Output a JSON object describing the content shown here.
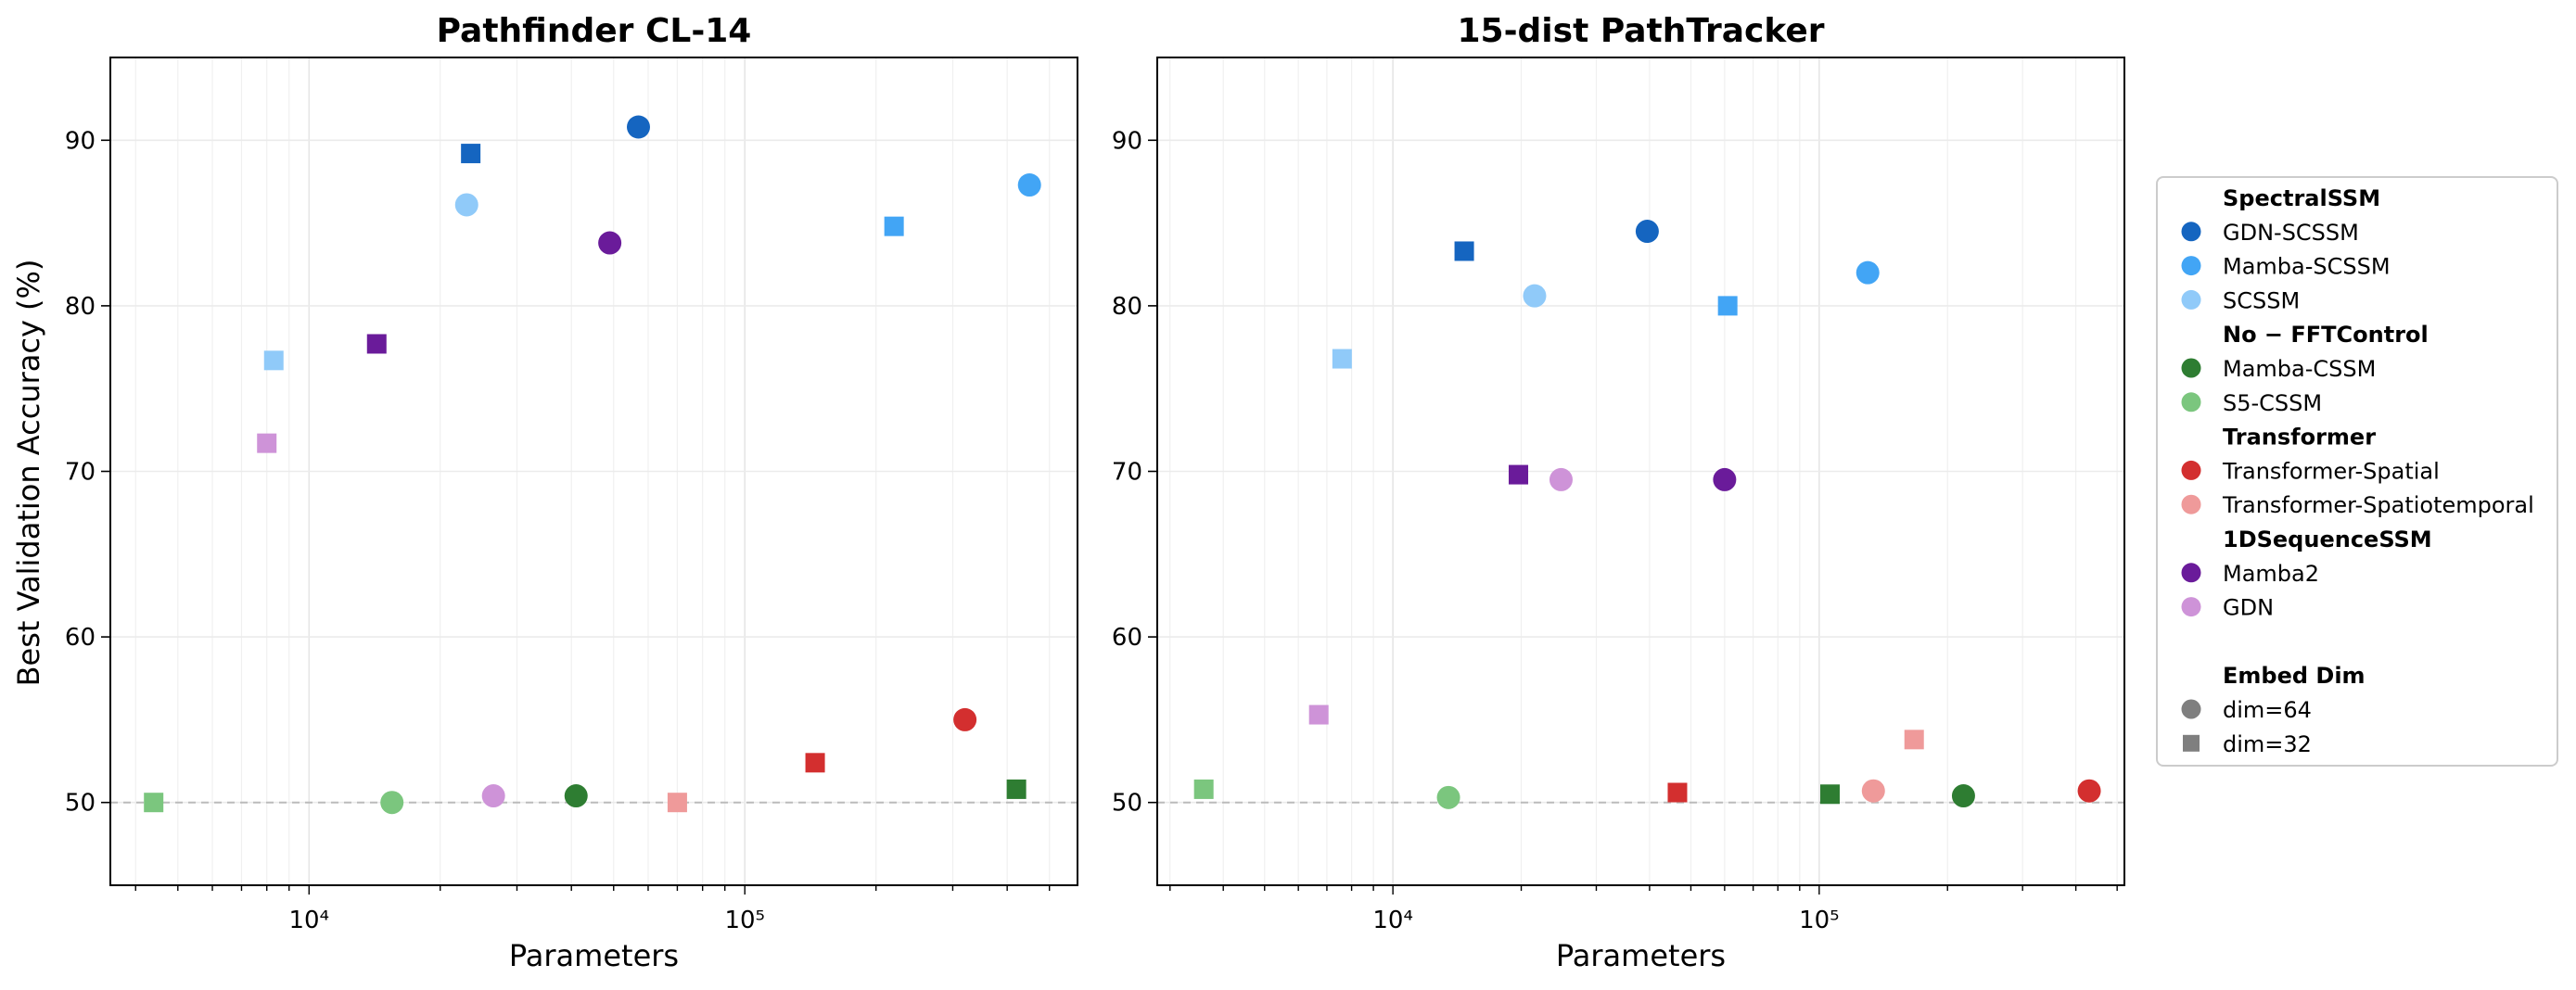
{
  "figure": {
    "ylabel": "Best Validation Accuracy (%)"
  },
  "colors": {
    "GDN-SCSSM": "#1565c0",
    "Mamba-SCSSM": "#42a5f5",
    "SCSSM": "#90caf9",
    "Mamba-CSSM": "#2e7d32",
    "S5-CSSM": "#7bc67e",
    "Transformer-Spatial": "#d32f2f",
    "Transformer-Spatiotemporal": "#ef9a9a",
    "Mamba2": "#6a1b9a",
    "GDN": "#ce93d8",
    "embed_marker": "#7f7f7f",
    "reference_line": "#bbbbbb"
  },
  "legend": {
    "placement": "right-outside",
    "groups": [
      {
        "header": "SpectralSSM",
        "items": [
          "GDN-SCSSM",
          "Mamba-SCSSM",
          "SCSSM"
        ]
      },
      {
        "header": "No − FFTControl",
        "items": [
          "Mamba-CSSM",
          "S5-CSSM"
        ]
      },
      {
        "header": "Transformer",
        "items": [
          "Transformer-Spatial",
          "Transformer-Spatiotemporal"
        ]
      },
      {
        "header": "1DSequenceSSM",
        "items": [
          "Mamba2",
          "GDN"
        ]
      }
    ],
    "embed_header": "Embed Dim",
    "embed_items": [
      {
        "label": "dim=64",
        "marker": "circle"
      },
      {
        "label": "dim=32",
        "marker": "square"
      }
    ]
  },
  "chart_data": [
    {
      "type": "scatter",
      "title": "Pathfinder CL-14",
      "xlabel": "Parameters",
      "ylabel": "Best Validation Accuracy (%)",
      "xscale": "log",
      "xlim": [
        3500,
        580000
      ],
      "ylim": [
        45,
        95
      ],
      "yticks": [
        50,
        60,
        70,
        80,
        90
      ],
      "xticks": [
        {
          "value": 10000,
          "label": "10⁴"
        },
        {
          "value": 100000,
          "label": "10⁵"
        }
      ],
      "reference_line_y": 50,
      "grid": true,
      "points": [
        {
          "model": "GDN-SCSSM",
          "dim": 64,
          "x": 57000,
          "y": 90.8
        },
        {
          "model": "GDN-SCSSM",
          "dim": 32,
          "x": 23500,
          "y": 89.2
        },
        {
          "model": "Mamba-SCSSM",
          "dim": 64,
          "x": 450000,
          "y": 87.3
        },
        {
          "model": "Mamba-SCSSM",
          "dim": 32,
          "x": 220000,
          "y": 84.8
        },
        {
          "model": "SCSSM",
          "dim": 64,
          "x": 23000,
          "y": 86.1
        },
        {
          "model": "SCSSM",
          "dim": 32,
          "x": 8300,
          "y": 76.7
        },
        {
          "model": "Mamba2",
          "dim": 64,
          "x": 49000,
          "y": 83.8
        },
        {
          "model": "Mamba2",
          "dim": 32,
          "x": 14300,
          "y": 77.7
        },
        {
          "model": "GDN",
          "dim": 64,
          "x": 26500,
          "y": 50.4
        },
        {
          "model": "GDN",
          "dim": 32,
          "x": 8000,
          "y": 71.7
        },
        {
          "model": "Mamba-CSSM",
          "dim": 64,
          "x": 41000,
          "y": 50.4
        },
        {
          "model": "Mamba-CSSM",
          "dim": 32,
          "x": 420000,
          "y": 50.8
        },
        {
          "model": "S5-CSSM",
          "dim": 64,
          "x": 15500,
          "y": 50.0
        },
        {
          "model": "S5-CSSM",
          "dim": 32,
          "x": 4400,
          "y": 50.0
        },
        {
          "model": "Transformer-Spatial",
          "dim": 64,
          "x": 320000,
          "y": 55.0
        },
        {
          "model": "Transformer-Spatial",
          "dim": 32,
          "x": 145000,
          "y": 52.4
        },
        {
          "model": "Transformer-Spatiotemporal",
          "dim": 32,
          "x": 70000,
          "y": 50.0
        }
      ]
    },
    {
      "type": "scatter",
      "title": "15-dist PathTracker",
      "xlabel": "Parameters",
      "xscale": "log",
      "xlim": [
        2800,
        520000
      ],
      "ylim": [
        45,
        95
      ],
      "yticks": [
        50,
        60,
        70,
        80,
        90
      ],
      "xticks": [
        {
          "value": 10000,
          "label": "10⁴"
        },
        {
          "value": 100000,
          "label": "10⁵"
        }
      ],
      "reference_line_y": 50,
      "grid": true,
      "points": [
        {
          "model": "GDN-SCSSM",
          "dim": 64,
          "x": 39500,
          "y": 84.5
        },
        {
          "model": "GDN-SCSSM",
          "dim": 32,
          "x": 14700,
          "y": 83.3
        },
        {
          "model": "Mamba-SCSSM",
          "dim": 64,
          "x": 130000,
          "y": 82.0
        },
        {
          "model": "Mamba-SCSSM",
          "dim": 32,
          "x": 61000,
          "y": 80.0
        },
        {
          "model": "SCSSM",
          "dim": 64,
          "x": 21500,
          "y": 80.6
        },
        {
          "model": "SCSSM",
          "dim": 32,
          "x": 7600,
          "y": 76.8
        },
        {
          "model": "Mamba2",
          "dim": 64,
          "x": 60000,
          "y": 69.5
        },
        {
          "model": "Mamba2",
          "dim": 32,
          "x": 19700,
          "y": 69.8
        },
        {
          "model": "GDN",
          "dim": 64,
          "x": 24800,
          "y": 69.5
        },
        {
          "model": "GDN",
          "dim": 32,
          "x": 6700,
          "y": 55.3
        },
        {
          "model": "Mamba-CSSM",
          "dim": 64,
          "x": 218000,
          "y": 50.4
        },
        {
          "model": "Mamba-CSSM",
          "dim": 32,
          "x": 106000,
          "y": 50.5
        },
        {
          "model": "S5-CSSM",
          "dim": 64,
          "x": 13500,
          "y": 50.3
        },
        {
          "model": "S5-CSSM",
          "dim": 32,
          "x": 3600,
          "y": 50.8
        },
        {
          "model": "Transformer-Spatial",
          "dim": 64,
          "x": 430000,
          "y": 50.7
        },
        {
          "model": "Transformer-Spatial",
          "dim": 32,
          "x": 46500,
          "y": 50.6
        },
        {
          "model": "Transformer-Spatiotemporal",
          "dim": 64,
          "x": 134000,
          "y": 50.7
        },
        {
          "model": "Transformer-Spatiotemporal",
          "dim": 32,
          "x": 167000,
          "y": 53.8
        }
      ]
    }
  ]
}
